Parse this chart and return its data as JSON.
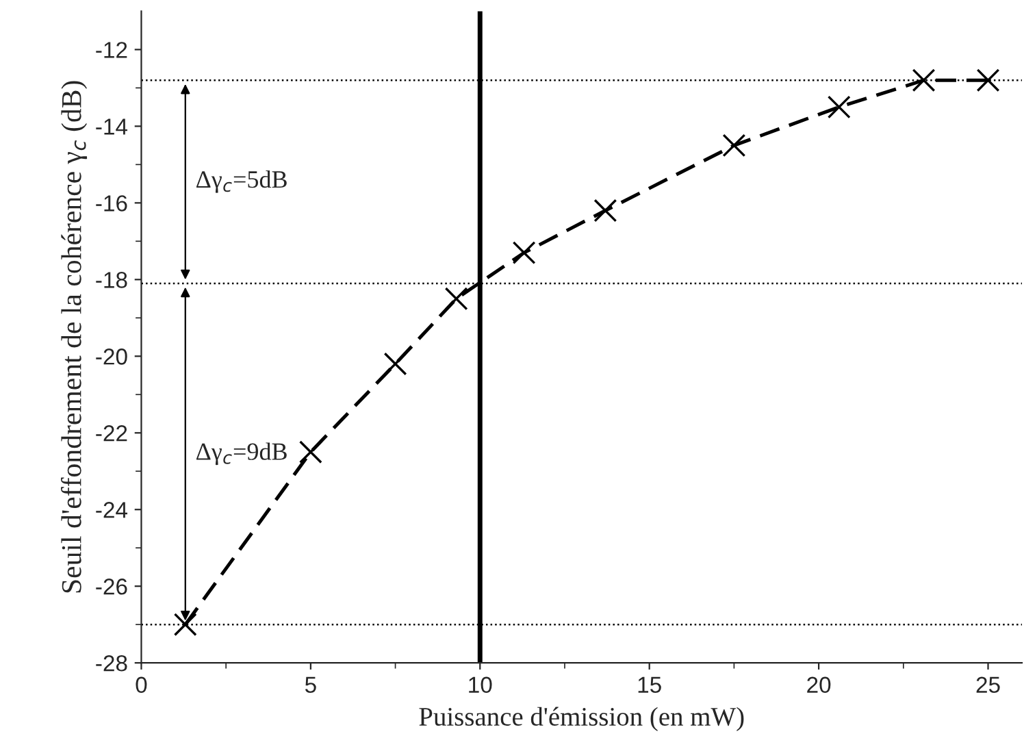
{
  "chart_data": {
    "type": "line",
    "xlabel": "Puissance d'émission (en mW)",
    "ylabel": "Seuil d'effondrement de la cohérence γ$_{c}$ (dB)",
    "x": [
      1.3,
      5,
      7.5,
      9.3,
      11.3,
      13.7,
      17.5,
      20.6,
      23.1,
      25
    ],
    "series": [
      {
        "color": "#000000",
        "values": [
          -27,
          -22.5,
          -20.2,
          -18.5,
          -17.3,
          -16.2,
          -14.5,
          -13.5,
          -12.8,
          -12.8
        ],
        "marker": "cross",
        "line_style": "dashed"
      }
    ],
    "xlim": [
      0,
      26
    ],
    "xticks": [
      0,
      5,
      10,
      15,
      20,
      25
    ],
    "ylim": [
      -28,
      -11
    ],
    "yticks": [
      -28,
      -26,
      -24,
      -22,
      -20,
      -18,
      -16,
      -14,
      -12
    ],
    "ref_lines": [
      {
        "axis": "x",
        "value": 10,
        "line_style": "solid"
      },
      {
        "axis": "y",
        "value": -12.8,
        "line_style": "dotted"
      },
      {
        "axis": "y",
        "value": -18.1,
        "line_style": "dotted"
      },
      {
        "axis": "y",
        "value": -27,
        "line_style": "dotted"
      }
    ],
    "annotations": [
      "Δγ$_{c}$=5dB",
      "Δγ$_{c}$=9dB"
    ],
    "grid": false,
    "legend": false
  }
}
